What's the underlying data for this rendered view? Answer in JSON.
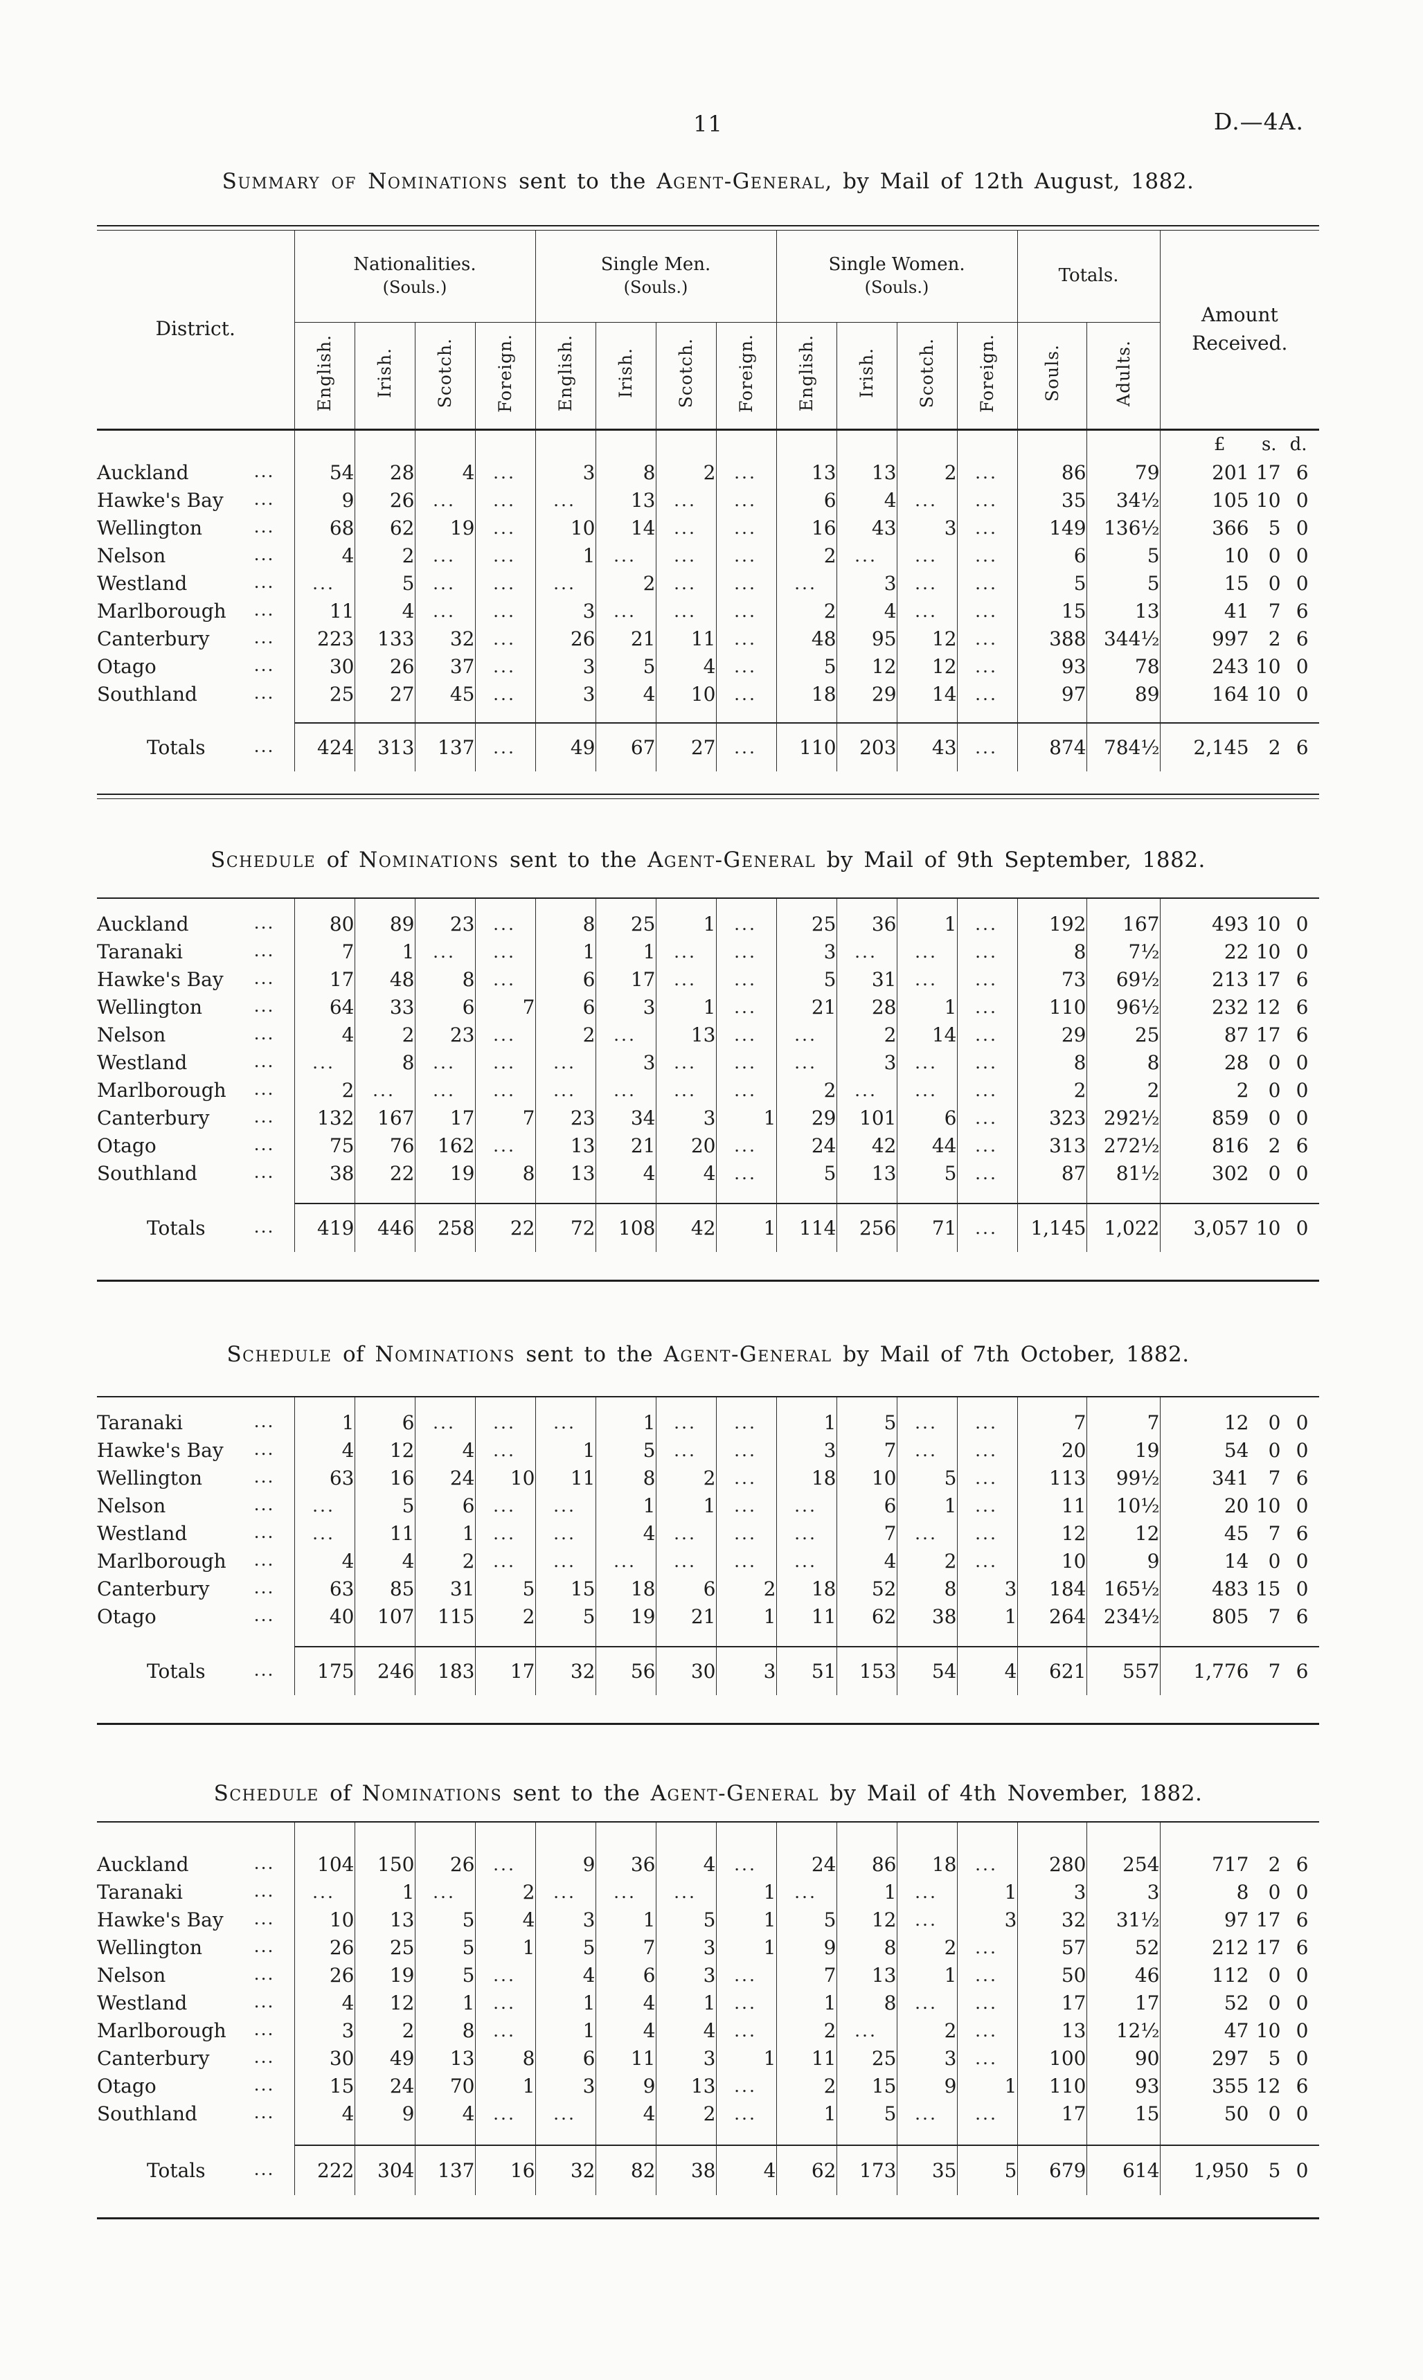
{
  "page": {
    "number": "11",
    "doc_ref": "D.—4A."
  },
  "table_header": {
    "district": "District.",
    "groups": [
      {
        "label": "Nationalities.",
        "unit": "(Souls.)",
        "cols": [
          "English.",
          "Irish.",
          "Scotch.",
          "Foreign."
        ]
      },
      {
        "label": "Single Men.",
        "unit": "(Souls.)",
        "cols": [
          "English.",
          "Irish.",
          "Scotch.",
          "Foreign."
        ]
      },
      {
        "label": "Single Women.",
        "unit": "(Souls.)",
        "cols": [
          "English.",
          "Irish.",
          "Scotch.",
          "Foreign."
        ]
      },
      {
        "label": "Totals.",
        "unit": "",
        "cols": [
          "Souls.",
          "Adults."
        ]
      }
    ],
    "amount_label_lines": [
      "Amount",
      "Received."
    ],
    "currency": [
      "£",
      "s.",
      "d."
    ],
    "leader_dots": "..."
  },
  "tables": [
    {
      "id": "august",
      "title_segments": [
        [
          "sc",
          "Summary of Nominations"
        ],
        [
          "n",
          " sent to the "
        ],
        [
          "sc",
          "Agent-General"
        ],
        [
          "n",
          ", by Mail of 12th August, 1882."
        ]
      ],
      "rows": [
        {
          "d": "Auckland",
          "v": [
            "54",
            "28",
            "4",
            "...",
            "3",
            "8",
            "2",
            "...",
            "13",
            "13",
            "2",
            "...",
            "86",
            "79"
          ],
          "a": [
            "201",
            "17",
            "6"
          ]
        },
        {
          "d": "Hawke's Bay",
          "v": [
            "9",
            "26",
            "...",
            "...",
            "...",
            "13",
            "...",
            "...",
            "6",
            "4",
            "...",
            "...",
            "35",
            "34½"
          ],
          "a": [
            "105",
            "10",
            "0"
          ]
        },
        {
          "d": "Wellington",
          "v": [
            "68",
            "62",
            "19",
            "...",
            "10",
            "14",
            "...",
            "...",
            "16",
            "43",
            "3",
            "...",
            "149",
            "136½"
          ],
          "a": [
            "366",
            "5",
            "0"
          ]
        },
        {
          "d": "Nelson",
          "v": [
            "4",
            "2",
            "...",
            "...",
            "1",
            "...",
            "...",
            "...",
            "2",
            "...",
            "...",
            "...",
            "6",
            "5"
          ],
          "a": [
            "10",
            "0",
            "0"
          ]
        },
        {
          "d": "Westland",
          "v": [
            "...",
            "5",
            "...",
            "...",
            "...",
            "2",
            "...",
            "...",
            "...",
            "3",
            "...",
            "...",
            "5",
            "5"
          ],
          "a": [
            "15",
            "0",
            "0"
          ]
        },
        {
          "d": "Marlborough",
          "v": [
            "11",
            "4",
            "...",
            "...",
            "3",
            "...",
            "...",
            "...",
            "2",
            "4",
            "...",
            "...",
            "15",
            "13"
          ],
          "a": [
            "41",
            "7",
            "6"
          ]
        },
        {
          "d": "Canterbury",
          "v": [
            "223",
            "133",
            "32",
            "...",
            "26",
            "21",
            "11",
            "...",
            "48",
            "95",
            "12",
            "...",
            "388",
            "344½"
          ],
          "a": [
            "997",
            "2",
            "6"
          ]
        },
        {
          "d": "Otago",
          "v": [
            "30",
            "26",
            "37",
            "...",
            "3",
            "5",
            "4",
            "...",
            "5",
            "12",
            "12",
            "...",
            "93",
            "78"
          ],
          "a": [
            "243",
            "10",
            "0"
          ]
        },
        {
          "d": "Southland",
          "v": [
            "25",
            "27",
            "45",
            "...",
            "3",
            "4",
            "10",
            "...",
            "18",
            "29",
            "14",
            "...",
            "97",
            "89"
          ],
          "a": [
            "164",
            "10",
            "0"
          ]
        }
      ],
      "totals": {
        "d": "Totals",
        "v": [
          "424",
          "313",
          "137",
          "...",
          "49",
          "67",
          "27",
          "...",
          "110",
          "203",
          "43",
          "...",
          "874",
          "784½"
        ],
        "a": [
          "2,145",
          "2",
          "6"
        ]
      }
    },
    {
      "id": "september",
      "title_segments": [
        [
          "sc",
          "Schedule"
        ],
        [
          "n",
          " of "
        ],
        [
          "sc",
          "Nominations"
        ],
        [
          "n",
          " sent to the "
        ],
        [
          "sc",
          "Agent-General"
        ],
        [
          "n",
          " by Mail of 9th September, 1882."
        ]
      ],
      "rows": [
        {
          "d": "Auckland",
          "v": [
            "80",
            "89",
            "23",
            "...",
            "8",
            "25",
            "1",
            "...",
            "25",
            "36",
            "1",
            "...",
            "192",
            "167"
          ],
          "a": [
            "493",
            "10",
            "0"
          ]
        },
        {
          "d": "Taranaki",
          "v": [
            "7",
            "1",
            "...",
            "...",
            "1",
            "1",
            "...",
            "...",
            "3",
            "...",
            "...",
            "...",
            "8",
            "7½"
          ],
          "a": [
            "22",
            "10",
            "0"
          ]
        },
        {
          "d": "Hawke's Bay",
          "v": [
            "17",
            "48",
            "8",
            "...",
            "6",
            "17",
            "...",
            "...",
            "5",
            "31",
            "...",
            "...",
            "73",
            "69½"
          ],
          "a": [
            "213",
            "17",
            "6"
          ]
        },
        {
          "d": "Wellington",
          "v": [
            "64",
            "33",
            "6",
            "7",
            "6",
            "3",
            "1",
            "...",
            "21",
            "28",
            "1",
            "...",
            "110",
            "96½"
          ],
          "a": [
            "232",
            "12",
            "6"
          ]
        },
        {
          "d": "Nelson",
          "v": [
            "4",
            "2",
            "23",
            "...",
            "2",
            "...",
            "13",
            "...",
            "...",
            "2",
            "14",
            "...",
            "29",
            "25"
          ],
          "a": [
            "87",
            "17",
            "6"
          ]
        },
        {
          "d": "Westland",
          "v": [
            "...",
            "8",
            "...",
            "...",
            "...",
            "3",
            "...",
            "...",
            "...",
            "3",
            "...",
            "...",
            "8",
            "8"
          ],
          "a": [
            "28",
            "0",
            "0"
          ]
        },
        {
          "d": "Marlborough",
          "v": [
            "2",
            "...",
            "...",
            "...",
            "...",
            "...",
            "...",
            "...",
            "2",
            "...",
            "...",
            "...",
            "2",
            "2"
          ],
          "a": [
            "2",
            "0",
            "0"
          ]
        },
        {
          "d": "Canterbury",
          "v": [
            "132",
            "167",
            "17",
            "7",
            "23",
            "34",
            "3",
            "1",
            "29",
            "101",
            "6",
            "...",
            "323",
            "292½"
          ],
          "a": [
            "859",
            "0",
            "0"
          ]
        },
        {
          "d": "Otago",
          "v": [
            "75",
            "76",
            "162",
            "...",
            "13",
            "21",
            "20",
            "...",
            "24",
            "42",
            "44",
            "...",
            "313",
            "272½"
          ],
          "a": [
            "816",
            "2",
            "6"
          ]
        },
        {
          "d": "Southland",
          "v": [
            "38",
            "22",
            "19",
            "8",
            "13",
            "4",
            "4",
            "...",
            "5",
            "13",
            "5",
            "...",
            "87",
            "81½"
          ],
          "a": [
            "302",
            "0",
            "0"
          ]
        }
      ],
      "totals": {
        "d": "Totals",
        "v": [
          "419",
          "446",
          "258",
          "22",
          "72",
          "108",
          "42",
          "1",
          "114",
          "256",
          "71",
          "...",
          "1,145",
          "1,022"
        ],
        "a": [
          "3,057",
          "10",
          "0"
        ]
      }
    },
    {
      "id": "october",
      "title_segments": [
        [
          "sc",
          "Schedule"
        ],
        [
          "n",
          " of "
        ],
        [
          "sc",
          "Nominations"
        ],
        [
          "n",
          " sent to the "
        ],
        [
          "sc",
          "Agent-General"
        ],
        [
          "n",
          " by Mail of 7th October, 1882."
        ]
      ],
      "rows": [
        {
          "d": "Taranaki",
          "v": [
            "1",
            "6",
            "...",
            "...",
            "...",
            "1",
            "...",
            "...",
            "1",
            "5",
            "...",
            "...",
            "7",
            "7"
          ],
          "a": [
            "12",
            "0",
            "0"
          ]
        },
        {
          "d": "Hawke's Bay",
          "v": [
            "4",
            "12",
            "4",
            "...",
            "1",
            "5",
            "...",
            "...",
            "3",
            "7",
            "...",
            "...",
            "20",
            "19"
          ],
          "a": [
            "54",
            "0",
            "0"
          ]
        },
        {
          "d": "Wellington",
          "v": [
            "63",
            "16",
            "24",
            "10",
            "11",
            "8",
            "2",
            "...",
            "18",
            "10",
            "5",
            "...",
            "113",
            "99½"
          ],
          "a": [
            "341",
            "7",
            "6"
          ]
        },
        {
          "d": "Nelson",
          "v": [
            "...",
            "5",
            "6",
            "...",
            "...",
            "1",
            "1",
            "...",
            "...",
            "6",
            "1",
            "...",
            "11",
            "10½"
          ],
          "a": [
            "20",
            "10",
            "0"
          ]
        },
        {
          "d": "Westland",
          "v": [
            "...",
            "11",
            "1",
            "...",
            "...",
            "4",
            "...",
            "...",
            "...",
            "7",
            "...",
            "...",
            "12",
            "12"
          ],
          "a": [
            "45",
            "7",
            "6"
          ]
        },
        {
          "d": "Marlborough",
          "v": [
            "4",
            "4",
            "2",
            "...",
            "...",
            "...",
            "...",
            "...",
            "...",
            "4",
            "2",
            "...",
            "10",
            "9"
          ],
          "a": [
            "14",
            "0",
            "0"
          ]
        },
        {
          "d": "Canterbury",
          "v": [
            "63",
            "85",
            "31",
            "5",
            "15",
            "18",
            "6",
            "2",
            "18",
            "52",
            "8",
            "3",
            "184",
            "165½"
          ],
          "a": [
            "483",
            "15",
            "0"
          ]
        },
        {
          "d": "Otago",
          "v": [
            "40",
            "107",
            "115",
            "2",
            "5",
            "19",
            "21",
            "1",
            "11",
            "62",
            "38",
            "1",
            "264",
            "234½"
          ],
          "a": [
            "805",
            "7",
            "6"
          ]
        }
      ],
      "totals": {
        "d": "Totals",
        "v": [
          "175",
          "246",
          "183",
          "17",
          "32",
          "56",
          "30",
          "3",
          "51",
          "153",
          "54",
          "4",
          "621",
          "557"
        ],
        "a": [
          "1,776",
          "7",
          "6"
        ]
      }
    },
    {
      "id": "november",
      "title_segments": [
        [
          "sc",
          "Schedule"
        ],
        [
          "n",
          " of "
        ],
        [
          "sc",
          "Nominations"
        ],
        [
          "n",
          " sent to the "
        ],
        [
          "sc",
          "Agent-General"
        ],
        [
          "n",
          " by Mail of 4th November, 1882."
        ]
      ],
      "rows": [
        {
          "d": "Auckland",
          "v": [
            "104",
            "150",
            "26",
            "...",
            "9",
            "36",
            "4",
            "...",
            "24",
            "86",
            "18",
            "...",
            "280",
            "254"
          ],
          "a": [
            "717",
            "2",
            "6"
          ]
        },
        {
          "d": "Taranaki",
          "v": [
            "...",
            "1",
            "...",
            "2",
            "...",
            "...",
            "...",
            "1",
            "...",
            "1",
            "...",
            "1",
            "3",
            "3"
          ],
          "a": [
            "8",
            "0",
            "0"
          ]
        },
        {
          "d": "Hawke's Bay",
          "v": [
            "10",
            "13",
            "5",
            "4",
            "3",
            "1",
            "5",
            "1",
            "5",
            "12",
            "...",
            "3",
            "32",
            "31½"
          ],
          "a": [
            "97",
            "17",
            "6"
          ]
        },
        {
          "d": "Wellington",
          "v": [
            "26",
            "25",
            "5",
            "1",
            "5",
            "7",
            "3",
            "1",
            "9",
            "8",
            "2",
            "...",
            "57",
            "52"
          ],
          "a": [
            "212",
            "17",
            "6"
          ]
        },
        {
          "d": "Nelson",
          "v": [
            "26",
            "19",
            "5",
            "...",
            "4",
            "6",
            "3",
            "...",
            "7",
            "13",
            "1",
            "...",
            "50",
            "46"
          ],
          "a": [
            "112",
            "0",
            "0"
          ]
        },
        {
          "d": "Westland",
          "v": [
            "4",
            "12",
            "1",
            "...",
            "1",
            "4",
            "1",
            "...",
            "1",
            "8",
            "...",
            "...",
            "17",
            "17"
          ],
          "a": [
            "52",
            "0",
            "0"
          ]
        },
        {
          "d": "Marlborough",
          "v": [
            "3",
            "2",
            "8",
            "...",
            "1",
            "4",
            "4",
            "...",
            "2",
            "...",
            "2",
            "...",
            "13",
            "12½"
          ],
          "a": [
            "47",
            "10",
            "0"
          ]
        },
        {
          "d": "Canterbury",
          "v": [
            "30",
            "49",
            "13",
            "8",
            "6",
            "11",
            "3",
            "1",
            "11",
            "25",
            "3",
            "...",
            "100",
            "90"
          ],
          "a": [
            "297",
            "5",
            "0"
          ]
        },
        {
          "d": "Otago",
          "v": [
            "15",
            "24",
            "70",
            "1",
            "3",
            "9",
            "13",
            "...",
            "2",
            "15",
            "9",
            "1",
            "110",
            "93"
          ],
          "a": [
            "355",
            "12",
            "6"
          ]
        },
        {
          "d": "Southland",
          "v": [
            "4",
            "9",
            "4",
            "...",
            "...",
            "4",
            "2",
            "...",
            "1",
            "5",
            "...",
            "...",
            "17",
            "15"
          ],
          "a": [
            "50",
            "0",
            "0"
          ]
        }
      ],
      "totals": {
        "d": "Totals",
        "v": [
          "222",
          "304",
          "137",
          "16",
          "32",
          "82",
          "38",
          "4",
          "62",
          "173",
          "35",
          "5",
          "679",
          "614"
        ],
        "a": [
          "1,950",
          "5",
          "0"
        ]
      }
    }
  ]
}
